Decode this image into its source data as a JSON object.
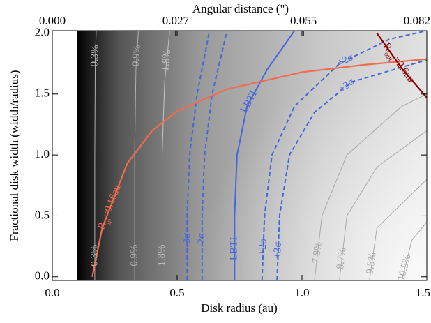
{
  "chart_data": {
    "type": "contour",
    "xlabel": "Disk radius (au)",
    "ylabel": "Fractional disk width (width/radius)",
    "x2label": "Angular distance (\")",
    "xlim": [
      0,
      1.5
    ],
    "ylim": [
      -0.03,
      2.02
    ],
    "x2lim": [
      0,
      0.082
    ],
    "xticks": [
      {
        "value": 0,
        "label": "0.0"
      },
      0.5,
      {
        "value": 1,
        "label": "1.0"
      },
      1.5
    ],
    "yticks": [
      {
        "value": 0,
        "label": "0.0"
      },
      0.5,
      {
        "value": 1,
        "label": "1.0"
      },
      1.5,
      {
        "value": 2,
        "label": "2.0"
      }
    ],
    "x2ticks": [
      {
        "value": 0,
        "label": "0.000"
      },
      0.027,
      0.055,
      0.082
    ],
    "series": [
      {
        "name": "0.3%",
        "color": "#b0b0b0",
        "style": "solid",
        "x": [
          0.17,
          0.17,
          0.172,
          0.176
        ],
        "values": [
          -0.03,
          1.0,
          1.8,
          2.02
        ]
      },
      {
        "name": "0.9%",
        "color": "#b0b0b0",
        "style": "solid",
        "x": [
          0.33,
          0.33,
          0.335,
          0.345
        ],
        "values": [
          -0.03,
          1.0,
          1.7,
          2.02
        ]
      },
      {
        "name": "1.8%",
        "color": "#c4c4c4",
        "style": "solid",
        "x": [
          0.44,
          0.44,
          0.45,
          0.47
        ],
        "values": [
          -0.03,
          1.0,
          1.6,
          2.02
        ]
      },
      {
        "name": "7.8%",
        "color": "#a8a8a8",
        "style": "solid",
        "x": [
          1.05,
          1.08,
          1.18,
          1.4,
          1.5
        ],
        "values": [
          -0.03,
          0.5,
          1.0,
          1.4,
          1.5
        ]
      },
      {
        "name": "8.7%",
        "color": "#a8a8a8",
        "style": "solid",
        "x": [
          1.15,
          1.18,
          1.3,
          1.5
        ],
        "values": [
          -0.03,
          0.5,
          0.9,
          1.2
        ]
      },
      {
        "name": "9.5%",
        "color": "#a8a8a8",
        "style": "solid",
        "x": [
          1.27,
          1.3,
          1.5
        ],
        "values": [
          -0.03,
          0.4,
          0.8
        ]
      },
      {
        "name": "10.5%",
        "color": "#a8a8a8",
        "style": "solid",
        "x": [
          1.4,
          1.44,
          1.5
        ],
        "values": [
          -0.03,
          0.3,
          0.45
        ]
      },
      {
        "name": "-3σ",
        "color": "#4466dd",
        "style": "dashed",
        "x": [
          0.54,
          0.54,
          0.55,
          0.58,
          0.63
        ],
        "values": [
          -0.03,
          0.5,
          1.0,
          1.5,
          2.02
        ]
      },
      {
        "name": "-2σ",
        "color": "#4466dd",
        "style": "dashed",
        "x": [
          0.6,
          0.6,
          0.61,
          0.64,
          0.7
        ],
        "values": [
          -0.03,
          0.5,
          1.0,
          1.5,
          2.02
        ]
      },
      {
        "name": "LBTI",
        "color": "#4466dd",
        "style": "solid",
        "x": [
          0.73,
          0.73,
          0.74,
          0.78,
          0.86,
          0.97
        ],
        "values": [
          -0.03,
          0.5,
          1.0,
          1.4,
          1.7,
          2.02
        ]
      },
      {
        "name": "+2σ",
        "color": "#4466dd",
        "style": "dashed",
        "x": [
          0.84,
          0.85,
          0.88,
          0.97,
          1.15,
          1.35,
          1.5
        ],
        "values": [
          -0.03,
          0.5,
          1.0,
          1.4,
          1.75,
          1.95,
          2.02
        ]
      },
      {
        "name": "+3σ",
        "color": "#4466dd",
        "style": "dashed",
        "x": [
          0.9,
          0.91,
          0.95,
          1.05,
          1.2,
          1.5
        ],
        "values": [
          -0.03,
          0.5,
          1.0,
          1.35,
          1.6,
          1.78
        ]
      },
      {
        "label_parts": [
          "R",
          "in",
          "=0.16au"
        ],
        "color": "#f26b4d",
        "style": "solid",
        "x": [
          0.16,
          0.2,
          0.3,
          0.4,
          0.5,
          0.7,
          1.0,
          1.25,
          1.5
        ],
        "values": [
          0,
          0.4,
          0.93,
          1.2,
          1.36,
          1.54,
          1.68,
          1.74,
          1.787
        ]
      },
      {
        "label_parts": [
          "R",
          "out",
          "=2.6au"
        ],
        "color": "#8b0000",
        "style": "solid",
        "x": [
          1.3,
          1.4,
          1.5
        ],
        "values": [
          2.0,
          1.71,
          1.47
        ]
      }
    ]
  }
}
